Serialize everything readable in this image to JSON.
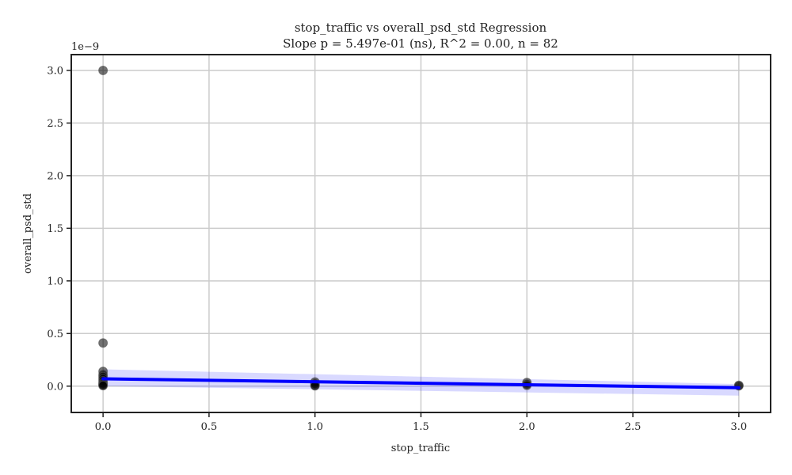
{
  "chart_data": {
    "type": "scatter",
    "title": "stop_traffic vs overall_psd_std Regression",
    "subtitle": "Slope p = 5.497e-01 (ns), R^2 = 0.00, n = 82",
    "xlabel": "stop_traffic",
    "ylabel": "overall_psd_std",
    "y_offset_label": "1e−9",
    "xlim": [
      -0.15,
      3.15
    ],
    "ylim": [
      -0.25,
      3.15
    ],
    "x_ticks": [
      0.0,
      0.5,
      1.0,
      1.5,
      2.0,
      2.5,
      3.0
    ],
    "x_tick_labels": [
      "0.0",
      "0.5",
      "1.0",
      "1.5",
      "2.0",
      "2.5",
      "3.0"
    ],
    "y_ticks": [
      0.0,
      0.5,
      1.0,
      1.5,
      2.0,
      2.5,
      3.0
    ],
    "y_tick_labels": [
      "0.0",
      "0.5",
      "1.0",
      "1.5",
      "2.0",
      "2.5",
      "3.0"
    ],
    "grid": true,
    "points": [
      {
        "x": 0,
        "y": 3.0
      },
      {
        "x": 0,
        "y": 0.41
      },
      {
        "x": 0,
        "y": 0.14
      },
      {
        "x": 0,
        "y": 0.11
      },
      {
        "x": 0,
        "y": 0.09
      },
      {
        "x": 0,
        "y": 0.07
      },
      {
        "x": 0,
        "y": 0.05
      },
      {
        "x": 0,
        "y": 0.03
      },
      {
        "x": 0,
        "y": 0.02
      },
      {
        "x": 0,
        "y": 0.01
      },
      {
        "x": 0,
        "y": 0.005
      },
      {
        "x": 1,
        "y": 0.04
      },
      {
        "x": 1,
        "y": 0.025
      },
      {
        "x": 1,
        "y": 0.01
      },
      {
        "x": 1,
        "y": 0.003
      },
      {
        "x": 2,
        "y": 0.035
      },
      {
        "x": 2,
        "y": 0.02
      },
      {
        "x": 2,
        "y": 0.008
      },
      {
        "x": 3,
        "y": 0.008
      },
      {
        "x": 3,
        "y": 0.003
      }
    ],
    "regression": {
      "x": [
        0,
        3
      ],
      "y": [
        0.07,
        -0.015
      ],
      "ci_lower": [
        0.0,
        -0.09
      ],
      "ci_upper": [
        0.16,
        0.02
      ]
    },
    "colors": {
      "points": "#000000",
      "line": "#0000ff",
      "band": "#0000ff"
    }
  }
}
